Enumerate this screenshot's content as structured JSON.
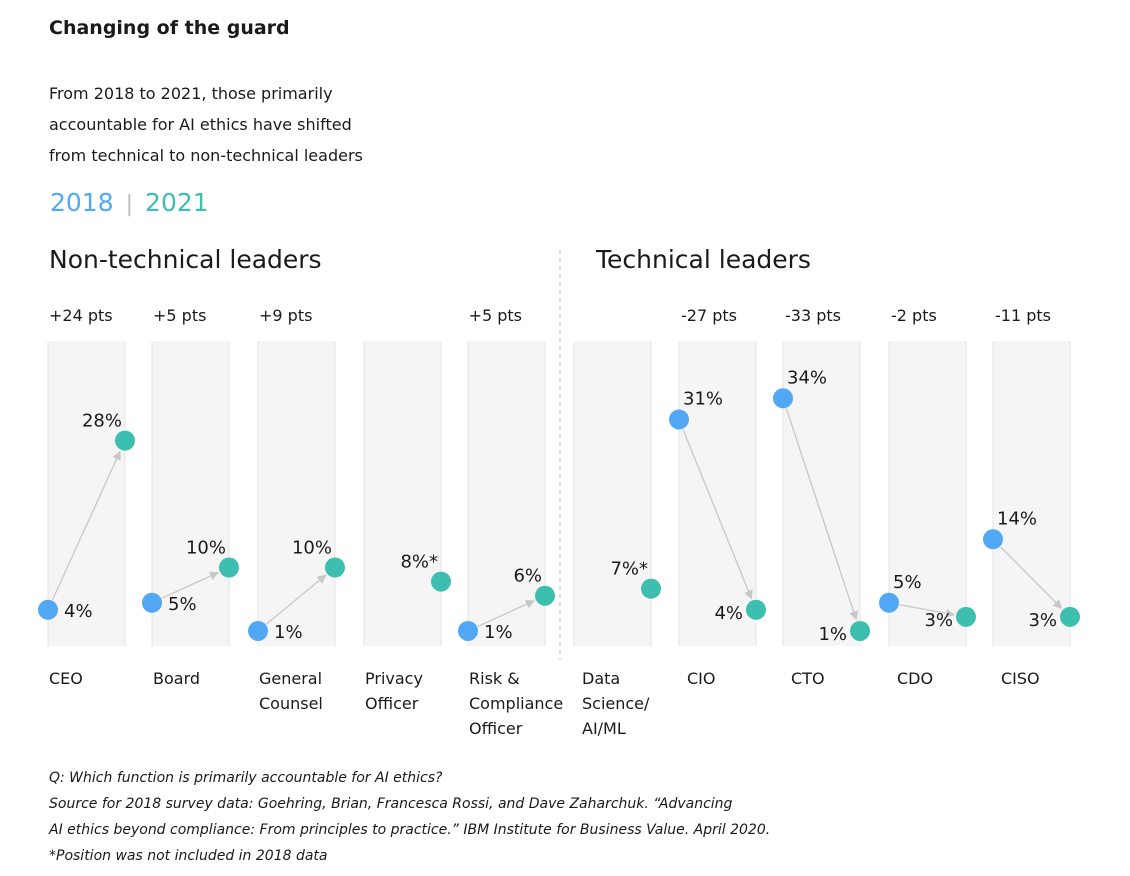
{
  "title": "Changing of the guard",
  "subtitle_lines": [
    "From 2018 to 2021, those primarily",
    "accountable for AI ethics have shifted",
    "from technical to non-technical leaders"
  ],
  "legend": {
    "y2018": "2018",
    "separator": "|",
    "y2021": "2021"
  },
  "groups": {
    "non_technical": "Non-technical leaders",
    "technical": "Technical leaders"
  },
  "colors": {
    "y2018": "#52a8f4",
    "y2021": "#3cbfae",
    "arrow": "#c8c8c8",
    "column": "#f5f5f5",
    "column_border": "#e4e4e4"
  },
  "chart_data": {
    "type": "scatter",
    "ylim": [
      0,
      36
    ],
    "series": [
      {
        "name": "2018"
      },
      {
        "name": "2021"
      }
    ],
    "categories": [
      {
        "label": [
          "CEO"
        ],
        "group": "non_technical",
        "change": "+24 pts",
        "v2018": 4,
        "v2021": 28,
        "l2018": "4%",
        "l2021": "28%"
      },
      {
        "label": [
          "Board"
        ],
        "group": "non_technical",
        "change": "+5 pts",
        "v2018": 5,
        "v2021": 10,
        "l2018": "5%",
        "l2021": "10%"
      },
      {
        "label": [
          "General",
          "Counsel"
        ],
        "group": "non_technical",
        "change": "+9 pts",
        "v2018": 1,
        "v2021": 10,
        "l2018": "1%",
        "l2021": "10%"
      },
      {
        "label": [
          "Privacy",
          "Officer"
        ],
        "group": "non_technical",
        "change": "",
        "v2018": null,
        "v2021": 8,
        "l2018": "",
        "l2021": "8%*"
      },
      {
        "label": [
          "Risk &",
          "Compliance",
          "Officer"
        ],
        "group": "non_technical",
        "change": "+5 pts",
        "v2018": 1,
        "v2021": 6,
        "l2018": "1%",
        "l2021": "6%"
      },
      {
        "label": [
          "Data",
          "Science/",
          "AI/ML"
        ],
        "group": "technical",
        "change": "",
        "v2018": null,
        "v2021": 7,
        "l2018": "",
        "l2021": "7%*"
      },
      {
        "label": [
          "CIO"
        ],
        "group": "technical",
        "change": "-27 pts",
        "v2018": 31,
        "v2021": 4,
        "l2018": "31%",
        "l2021": "4%"
      },
      {
        "label": [
          "CTO"
        ],
        "group": "technical",
        "change": "-33 pts",
        "v2018": 34,
        "v2021": 1,
        "l2018": "34%",
        "l2021": "1%"
      },
      {
        "label": [
          "CDO"
        ],
        "group": "technical",
        "change": "-2 pts",
        "v2018": 5,
        "v2021": 3,
        "l2018": "5%",
        "l2021": "3%"
      },
      {
        "label": [
          "CISO"
        ],
        "group": "technical",
        "change": "-11 pts",
        "v2018": 14,
        "v2021": 3,
        "l2018": "14%",
        "l2021": "3%"
      }
    ]
  },
  "footnotes": [
    "Q: Which function is primarily accountable for AI ethics?",
    "Source for 2018 survey data: Goehring, Brian, Francesca Rossi, and Dave Zaharchuk. “Advancing",
    "AI ethics beyond compliance: From principles to practice.” IBM Institute for Business Value. April 2020.",
    "*Position was not included in 2018 data"
  ]
}
